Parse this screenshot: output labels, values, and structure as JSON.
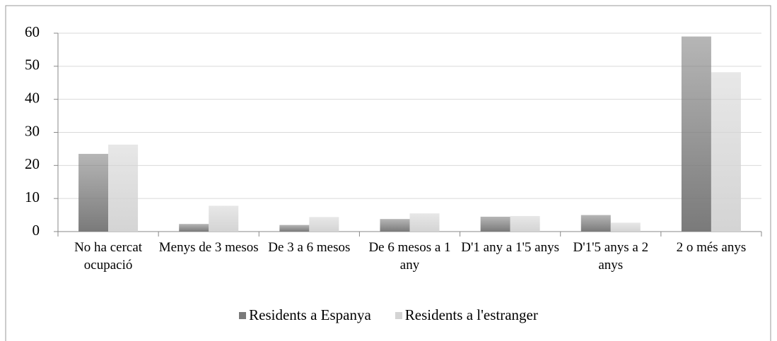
{
  "chart_data": {
    "type": "bar",
    "categories": [
      "No ha cercat ocupació",
      "Menys de 3 mesos",
      "De 3 a 6 mesos",
      "De 6 mesos a 1 any",
      "D'1 any a 1'5 anys",
      "D'1'5 anys a 2 anys",
      "2 o més anys"
    ],
    "series": [
      {
        "name": "Residents a Espanya",
        "color": "#7a7a7a",
        "values": [
          23.5,
          2.3,
          2,
          3.8,
          4.5,
          5,
          59
        ]
      },
      {
        "name": "Residents a l'estranger",
        "color": "#d4d4d4",
        "values": [
          26.3,
          7.8,
          4.4,
          5.5,
          4.7,
          2.7,
          48.2
        ]
      }
    ],
    "ylim": [
      0,
      60
    ],
    "yticks": [
      0,
      10,
      20,
      30,
      40,
      50,
      60
    ],
    "grid": true,
    "legend": "bottom"
  }
}
